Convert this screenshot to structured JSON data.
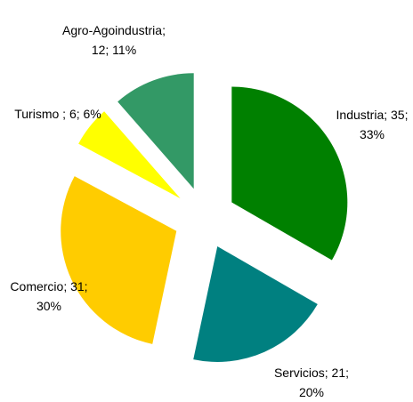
{
  "chart_data": {
    "type": "pie",
    "values": [
      35,
      21,
      31,
      6,
      12
    ],
    "value_labels": [
      "Industria; 35; 33%",
      "Servicios; 21; 20%",
      "Comercio; 31; 30%",
      "Turismo ; 6; 6%",
      "Agro-Agoindustria; 12; 11%"
    ],
    "colors": [
      "#008000",
      "#008080",
      "#ffcc00",
      "#ffff00",
      "#339966"
    ],
    "start_angle": 0,
    "exploded": true
  }
}
